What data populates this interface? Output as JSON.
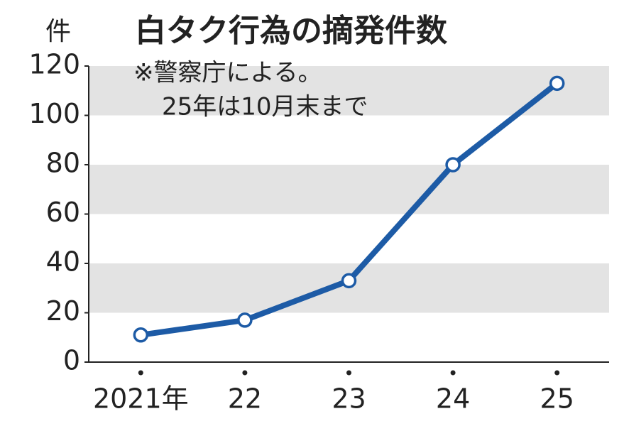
{
  "chart_data": {
    "type": "line",
    "title": "白タク行為の摘発件数",
    "ylabel": "件",
    "annotations": [
      "※警察庁による。",
      "25年は10月末まで"
    ],
    "categories": [
      "2021年",
      "22",
      "23",
      "24",
      "25"
    ],
    "values": [
      11,
      17,
      33,
      80,
      113
    ],
    "color": "#1d5ba6",
    "ylim": [
      0,
      120
    ],
    "yticks": [
      0,
      20,
      40,
      60,
      80,
      100,
      120
    ],
    "band_color": "#e3e3e3"
  }
}
